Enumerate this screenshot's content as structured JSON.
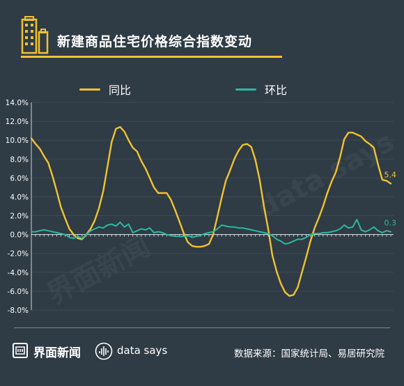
{
  "header": {
    "title": "新建商品住宅价格综合指数变动",
    "icon": "buildings-icon",
    "accent_color": "#f2c230"
  },
  "legend": {
    "items": [
      {
        "label": "同比",
        "color": "#f2c230"
      },
      {
        "label": "环比",
        "color": "#2bb9a3"
      }
    ]
  },
  "footer": {
    "brand": "界面新闻",
    "brand_icon": "jiemian-logo-icon",
    "datasays": "data says",
    "datasays_icon": "data-says-logo-icon",
    "source": "数据来源：国家统计局、易居研究院"
  },
  "watermarks": {
    "left": "界面新闻",
    "right": "data says"
  },
  "chart_data": {
    "type": "line",
    "ylim": [
      -8,
      14
    ],
    "yticks": [
      "14.0%",
      "12.0%",
      "10.0%",
      "8.0%",
      "6.0%",
      "4.0%",
      "2.0%",
      "0.0%",
      "-2.0%",
      "-4.0%",
      "-6.0%",
      "-8.0%"
    ],
    "ytick_values": [
      14,
      12,
      10,
      8,
      6,
      4,
      2,
      0,
      -2,
      -4,
      -6,
      -8
    ],
    "grid": true,
    "series": [
      {
        "name": "同比",
        "color": "#f2c230",
        "end_label": "5.4",
        "values": [
          10.2,
          9.6,
          9.1,
          8.3,
          7.6,
          6.2,
          4.6,
          2.9,
          1.7,
          0.6,
          0.0,
          -0.4,
          -0.5,
          0.0,
          0.6,
          1.5,
          2.8,
          4.6,
          7.2,
          9.8,
          11.2,
          11.4,
          10.9,
          10.0,
          9.2,
          8.8,
          7.8,
          7.0,
          6.0,
          5.0,
          4.4,
          4.4,
          4.4,
          3.7,
          2.6,
          1.4,
          0.2,
          -0.8,
          -1.2,
          -1.3,
          -1.3,
          -1.2,
          -1.0,
          0.0,
          1.9,
          3.9,
          5.7,
          6.8,
          8.0,
          8.9,
          9.5,
          9.6,
          9.3,
          7.9,
          5.8,
          3.0,
          0.6,
          -2.2,
          -3.9,
          -5.2,
          -6.1,
          -6.5,
          -6.4,
          -5.6,
          -4.0,
          -2.4,
          -0.7,
          0.7,
          1.8,
          3.0,
          4.4,
          5.6,
          6.6,
          8.2,
          10.1,
          10.8,
          10.8,
          10.6,
          10.4,
          9.9,
          9.6,
          9.2,
          7.4,
          5.8,
          5.7,
          5.4
        ]
      },
      {
        "name": "环比",
        "color": "#2bb9a3",
        "end_label": "0.3",
        "values": [
          0.3,
          0.3,
          0.4,
          0.5,
          0.4,
          0.3,
          0.2,
          0.1,
          0.0,
          -0.3,
          -0.4,
          -0.2,
          -0.4,
          0.0,
          0.4,
          0.6,
          0.8,
          0.7,
          1.0,
          1.1,
          0.9,
          1.3,
          0.8,
          1.1,
          0.2,
          0.4,
          0.6,
          0.5,
          0.7,
          0.2,
          0.3,
          0.2,
          0.0,
          -0.1,
          -0.2,
          -0.2,
          -0.2,
          -0.1,
          -0.3,
          -0.2,
          -0.1,
          0.1,
          0.2,
          0.3,
          0.6,
          1.0,
          0.9,
          0.8,
          0.8,
          0.7,
          0.7,
          0.6,
          0.5,
          0.4,
          0.3,
          0.2,
          0.1,
          -0.1,
          -0.5,
          -0.7,
          -1.0,
          -0.9,
          -0.7,
          -0.5,
          -0.5,
          -0.3,
          0.0,
          0.1,
          0.1,
          0.2,
          0.2,
          0.3,
          0.4,
          0.6,
          1.0,
          0.7,
          0.8,
          1.6,
          0.5,
          0.3,
          0.5,
          0.8,
          0.4,
          0.2,
          0.4,
          0.3
        ]
      }
    ]
  }
}
